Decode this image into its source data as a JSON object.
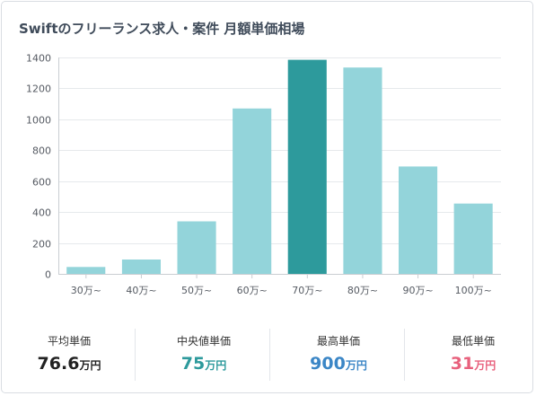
{
  "title": "Swiftのフリーランス求人・案件 月額単価相場",
  "chart_data": {
    "type": "bar",
    "categories": [
      "30万~",
      "40万~",
      "50万~",
      "60万~",
      "70万~",
      "80万~",
      "90万~",
      "100万~"
    ],
    "values": [
      45,
      93,
      340,
      1070,
      1385,
      1335,
      695,
      455
    ],
    "highlight_index": 4,
    "ylim": [
      0,
      1400
    ],
    "yticks": [
      0,
      200,
      400,
      600,
      800,
      1000,
      1200,
      1400
    ],
    "grid": true,
    "colors": {
      "bar": "#93d4da",
      "highlight": "#2d9a9c",
      "grid": "#e6e9ec",
      "axis": "#c9cdd2"
    }
  },
  "stats": [
    {
      "label": "平均単価",
      "value": "76.6",
      "unit": "万円",
      "color": "#222222"
    },
    {
      "label": "中央値単価",
      "value": "75",
      "unit": "万円",
      "color": "#2d9a9c"
    },
    {
      "label": "最高単価",
      "value": "900",
      "unit": "万円",
      "color": "#3b86c6"
    },
    {
      "label": "最低単価",
      "value": "31",
      "unit": "万円",
      "color": "#e8617d"
    }
  ]
}
